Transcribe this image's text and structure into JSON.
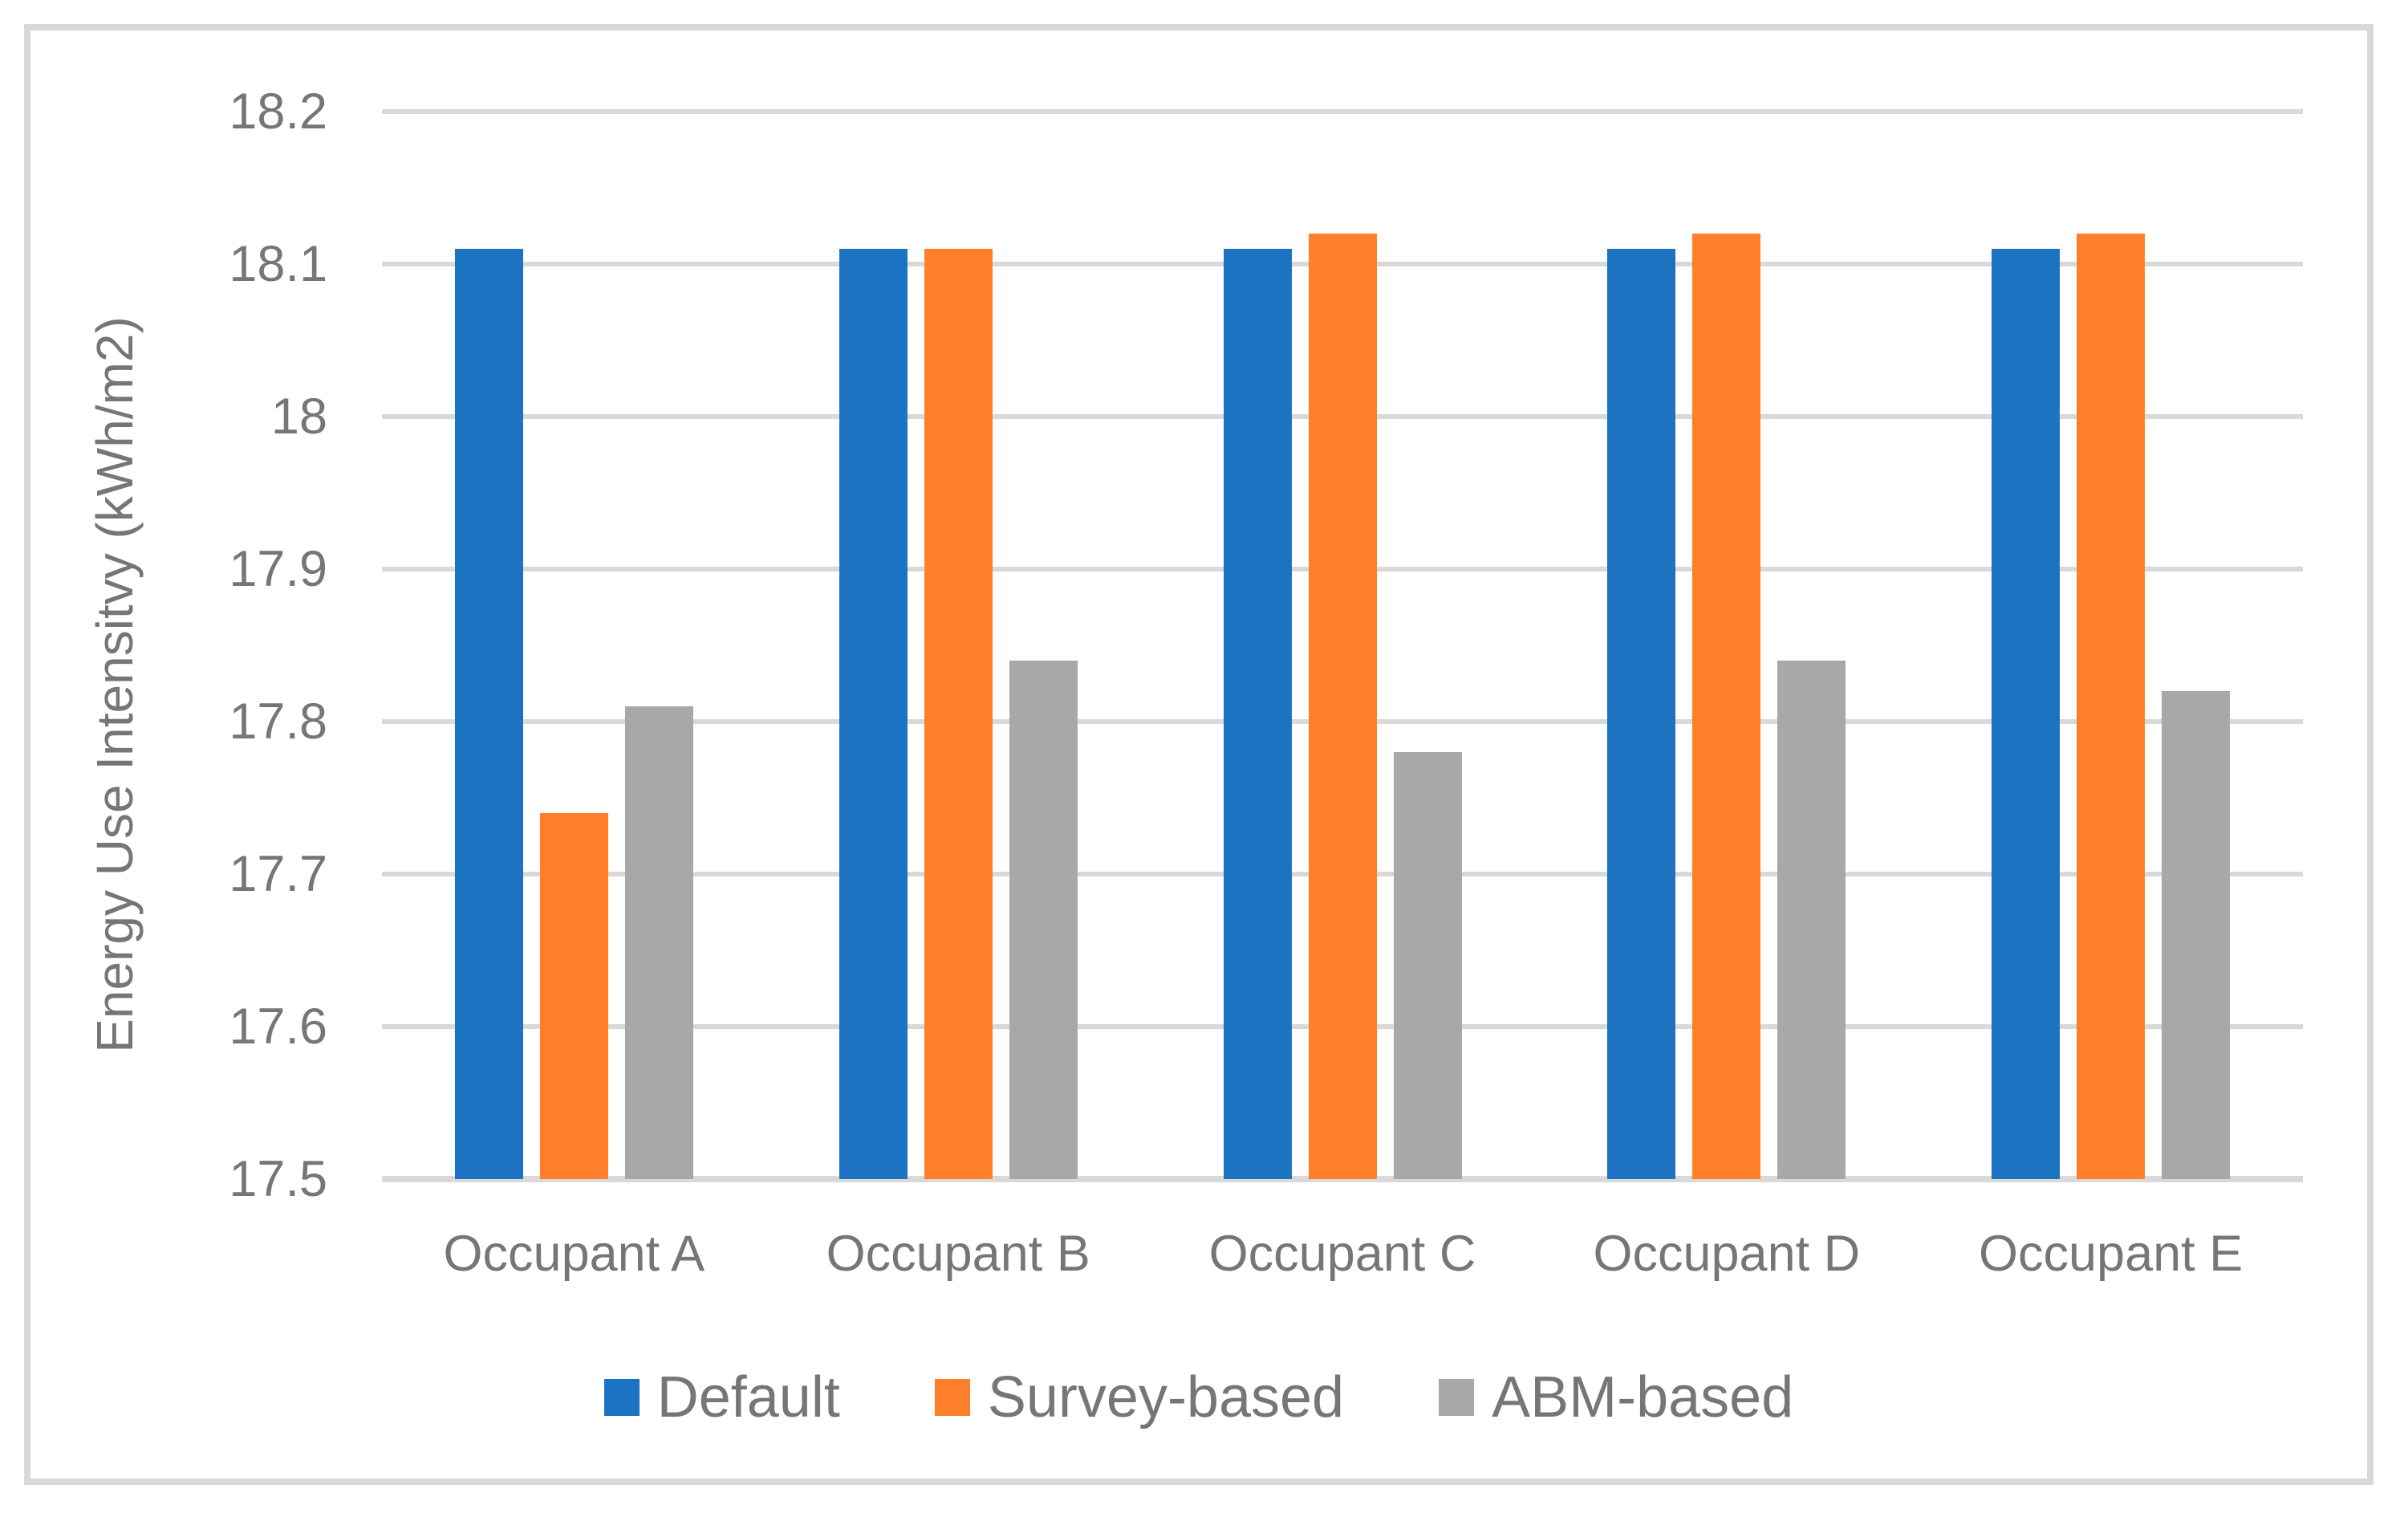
{
  "chart_data": {
    "type": "bar",
    "title": "",
    "categories": [
      "Occupant A",
      "Occupant B",
      "Occupant C",
      "Occupant D",
      "Occupant E"
    ],
    "series": [
      {
        "name": "Default",
        "color": "#1C73C2",
        "values": [
          18.11,
          18.11,
          18.11,
          18.11,
          18.11
        ]
      },
      {
        "name": "Survey-based",
        "color": "#FF7E29",
        "values": [
          17.74,
          18.11,
          18.12,
          18.12,
          18.12
        ]
      },
      {
        "name": "ABM-based",
        "color": "#A8A8A8",
        "values": [
          17.81,
          17.84,
          17.78,
          17.84,
          17.82
        ]
      }
    ],
    "xlabel": "",
    "ylabel": "Energy Use Intensitvy (kWh/m2)",
    "ylim": [
      17.5,
      18.2
    ],
    "ytick_step": 0.1,
    "yticks": [
      "18.2",
      "18.1",
      "18",
      "17.9",
      "17.8",
      "17.7",
      "17.6",
      "17.5"
    ],
    "grid": true,
    "legend_position": "bottom"
  },
  "colors": {
    "background": "#FFFFFF",
    "frame": "#D9D9D9",
    "grid": "#D9D9D9",
    "axis_line": "#D9D9D9",
    "axis_text": "#767676"
  }
}
